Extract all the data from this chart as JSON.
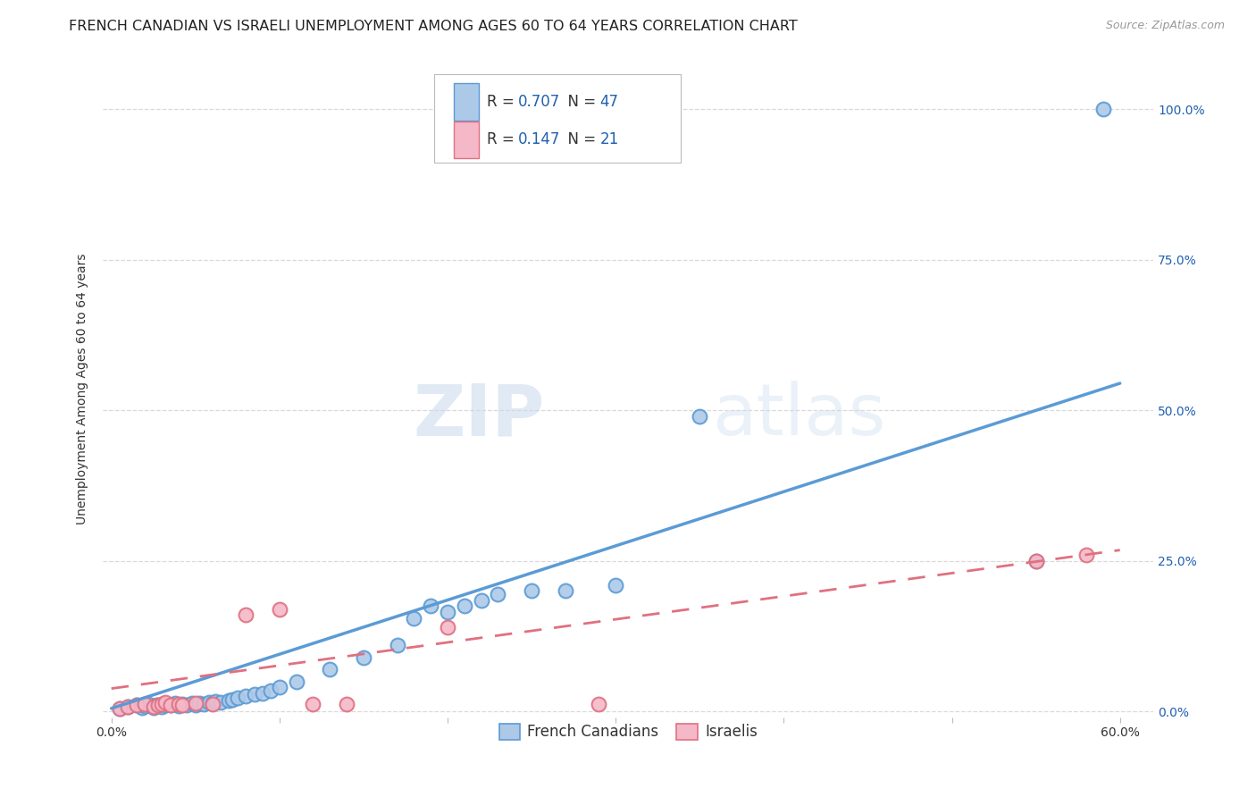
{
  "title": "FRENCH CANADIAN VS ISRAELI UNEMPLOYMENT AMONG AGES 60 TO 64 YEARS CORRELATION CHART",
  "source": "Source: ZipAtlas.com",
  "xlabel_ticks": [
    "0.0%",
    "",
    "",
    "",
    "",
    "",
    "60.0%"
  ],
  "xlabel_vals": [
    0.0,
    0.1,
    0.2,
    0.3,
    0.4,
    0.5,
    0.6
  ],
  "ylabel": "Unemployment Among Ages 60 to 64 years",
  "ylabel_ticks_right": [
    "0.0%",
    "25.0%",
    "50.0%",
    "75.0%",
    "100.0%"
  ],
  "ylabel_vals": [
    0.0,
    0.25,
    0.5,
    0.75,
    1.0
  ],
  "xlim": [
    -0.005,
    0.62
  ],
  "ylim": [
    -0.01,
    1.08
  ],
  "fc_color": "#adc9e8",
  "fc_edge_color": "#5b9bd5",
  "il_color": "#f4b8c8",
  "il_edge_color": "#e07080",
  "fc_R": "0.707",
  "fc_N": "47",
  "il_R": "0.147",
  "il_N": "21",
  "legend_label_fc": "French Canadians",
  "legend_label_il": "Israelis",
  "fc_scatter_x": [
    0.005,
    0.01,
    0.015,
    0.018,
    0.02,
    0.022,
    0.025,
    0.027,
    0.03,
    0.032,
    0.035,
    0.038,
    0.04,
    0.042,
    0.045,
    0.048,
    0.05,
    0.052,
    0.055,
    0.058,
    0.06,
    0.062,
    0.065,
    0.07,
    0.072,
    0.075,
    0.08,
    0.085,
    0.09,
    0.095,
    0.1,
    0.11,
    0.13,
    0.15,
    0.17,
    0.18,
    0.19,
    0.2,
    0.21,
    0.22,
    0.23,
    0.25,
    0.27,
    0.3,
    0.35,
    0.55,
    0.59
  ],
  "fc_scatter_y": [
    0.005,
    0.008,
    0.01,
    0.006,
    0.009,
    0.012,
    0.007,
    0.01,
    0.008,
    0.011,
    0.01,
    0.013,
    0.009,
    0.012,
    0.011,
    0.014,
    0.01,
    0.013,
    0.012,
    0.015,
    0.013,
    0.016,
    0.015,
    0.018,
    0.02,
    0.022,
    0.025,
    0.028,
    0.03,
    0.035,
    0.04,
    0.05,
    0.07,
    0.09,
    0.11,
    0.155,
    0.175,
    0.165,
    0.175,
    0.185,
    0.195,
    0.2,
    0.2,
    0.21,
    0.49,
    0.25,
    1.0
  ],
  "il_scatter_x": [
    0.005,
    0.01,
    0.015,
    0.02,
    0.025,
    0.028,
    0.03,
    0.032,
    0.035,
    0.04,
    0.042,
    0.05,
    0.06,
    0.08,
    0.1,
    0.12,
    0.14,
    0.2,
    0.29,
    0.55,
    0.58
  ],
  "il_scatter_y": [
    0.005,
    0.008,
    0.01,
    0.012,
    0.008,
    0.01,
    0.012,
    0.015,
    0.01,
    0.012,
    0.01,
    0.013,
    0.012,
    0.16,
    0.17,
    0.012,
    0.012,
    0.14,
    0.012,
    0.25,
    0.26
  ],
  "fc_line_x": [
    0.0,
    0.6
  ],
  "fc_line_y": [
    0.005,
    0.545
  ],
  "il_line_x": [
    0.0,
    0.6
  ],
  "il_line_y": [
    0.038,
    0.268
  ],
  "watermark_zip": "ZIP",
  "watermark_atlas": "atlas",
  "grid_color": "#d0d0d0",
  "background_color": "#ffffff",
  "title_fontsize": 11.5,
  "axis_label_fontsize": 10,
  "tick_fontsize": 10,
  "legend_fontsize": 12,
  "r_color": "#2060b0",
  "tick_color": "#2060b0"
}
